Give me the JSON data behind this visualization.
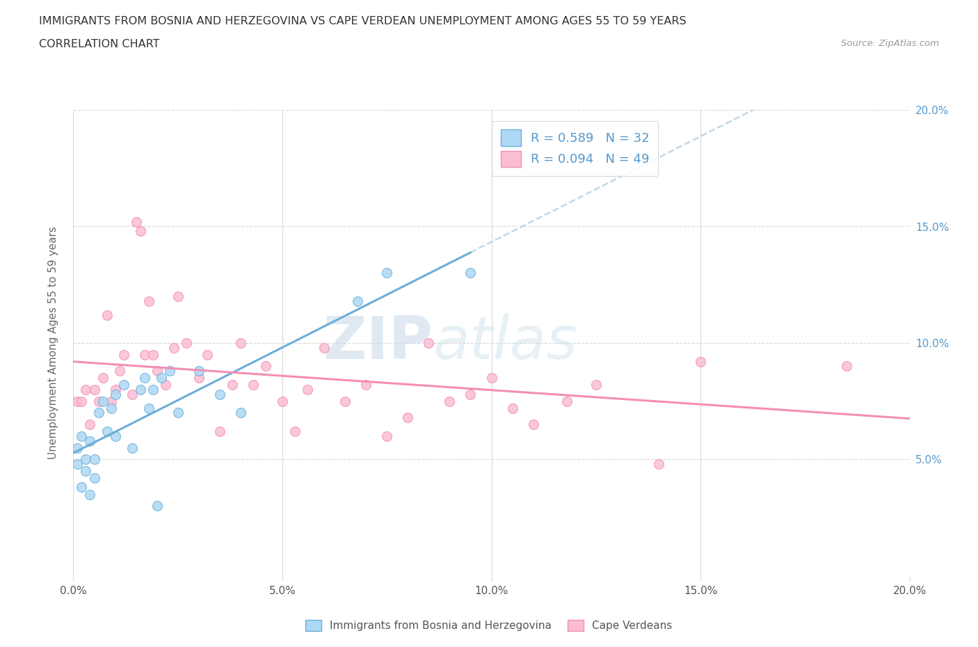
{
  "title_line1": "IMMIGRANTS FROM BOSNIA AND HERZEGOVINA VS CAPE VERDEAN UNEMPLOYMENT AMONG AGES 55 TO 59 YEARS",
  "title_line2": "CORRELATION CHART",
  "source_text": "Source: ZipAtlas.com",
  "ylabel": "Unemployment Among Ages 55 to 59 years",
  "xlim": [
    0.0,
    0.2
  ],
  "ylim": [
    0.0,
    0.2
  ],
  "xtick_vals": [
    0.0,
    0.05,
    0.1,
    0.15,
    0.2
  ],
  "xtick_labels": [
    "0.0%",
    "5.0%",
    "10.0%",
    "15.0%",
    "20.0%"
  ],
  "ytick_vals": [
    0.05,
    0.1,
    0.15,
    0.2
  ],
  "ytick_labels": [
    "5.0%",
    "10.0%",
    "15.0%",
    "20.0%"
  ],
  "bosnia_color": "#6baed6",
  "bosnia_fill": "#add8f5",
  "cape_color": "#f48fb1",
  "cape_fill": "#fbbdd4",
  "bosnia_R": 0.589,
  "bosnia_N": 32,
  "cape_R": 0.094,
  "cape_N": 49,
  "bosnia_x": [
    0.001,
    0.001,
    0.002,
    0.002,
    0.003,
    0.003,
    0.004,
    0.004,
    0.005,
    0.005,
    0.006,
    0.007,
    0.008,
    0.009,
    0.01,
    0.01,
    0.012,
    0.014,
    0.016,
    0.017,
    0.018,
    0.019,
    0.02,
    0.021,
    0.023,
    0.025,
    0.03,
    0.035,
    0.04,
    0.068,
    0.075,
    0.095
  ],
  "bosnia_y": [
    0.055,
    0.048,
    0.06,
    0.038,
    0.05,
    0.045,
    0.058,
    0.035,
    0.05,
    0.042,
    0.07,
    0.075,
    0.062,
    0.072,
    0.06,
    0.078,
    0.082,
    0.055,
    0.08,
    0.085,
    0.072,
    0.08,
    0.03,
    0.085,
    0.088,
    0.07,
    0.088,
    0.078,
    0.07,
    0.118,
    0.13,
    0.13
  ],
  "cape_x": [
    0.001,
    0.002,
    0.003,
    0.004,
    0.005,
    0.006,
    0.007,
    0.008,
    0.009,
    0.01,
    0.011,
    0.012,
    0.014,
    0.015,
    0.016,
    0.017,
    0.018,
    0.019,
    0.02,
    0.022,
    0.024,
    0.025,
    0.027,
    0.03,
    0.032,
    0.035,
    0.038,
    0.04,
    0.043,
    0.046,
    0.05,
    0.053,
    0.056,
    0.06,
    0.065,
    0.07,
    0.075,
    0.08,
    0.085,
    0.09,
    0.095,
    0.1,
    0.105,
    0.11,
    0.118,
    0.125,
    0.14,
    0.15,
    0.185
  ],
  "cape_y": [
    0.075,
    0.075,
    0.08,
    0.065,
    0.08,
    0.075,
    0.085,
    0.112,
    0.075,
    0.08,
    0.088,
    0.095,
    0.078,
    0.152,
    0.148,
    0.095,
    0.118,
    0.095,
    0.088,
    0.082,
    0.098,
    0.12,
    0.1,
    0.085,
    0.095,
    0.062,
    0.082,
    0.1,
    0.082,
    0.09,
    0.075,
    0.062,
    0.08,
    0.098,
    0.075,
    0.082,
    0.06,
    0.068,
    0.1,
    0.075,
    0.078,
    0.085,
    0.072,
    0.065,
    0.075,
    0.082,
    0.048,
    0.092,
    0.09
  ],
  "watermark_zip": "ZIP",
  "watermark_atlas": "atlas",
  "bg_color": "#ffffff",
  "grid_color": "#d8d8d8",
  "right_tick_color": "#5599cc",
  "text_color": "#333333",
  "source_color": "#999999"
}
